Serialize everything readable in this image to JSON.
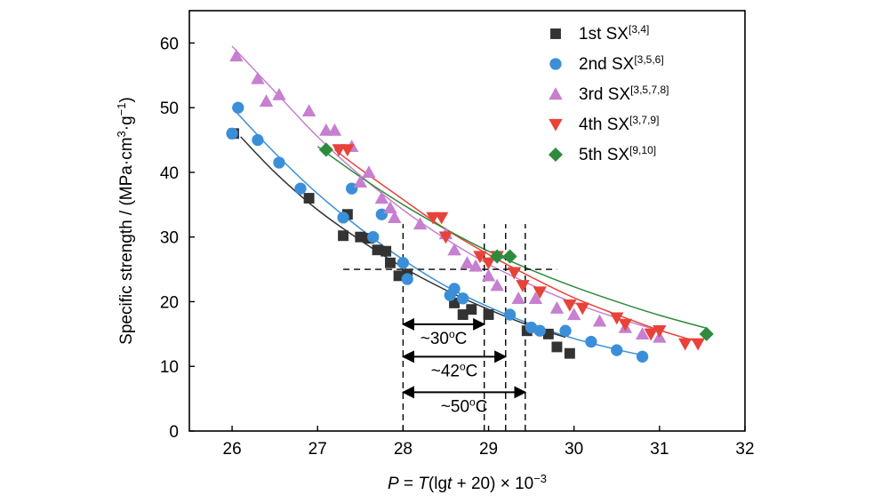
{
  "chart_data": {
    "type": "scatter",
    "title": "",
    "xlabel_parts": {
      "p": "P",
      "eq": " = ",
      "t": "T",
      "mid": "(lg",
      "t2": "t",
      "end": " + 20) × 10",
      "sup": "−3"
    },
    "ylabel": {
      "main": "Specific strength / (MPa·cm",
      "sup1": "3",
      "mid": "·g",
      "sup2": "−1",
      "end": ")"
    },
    "xlim": [
      25.5,
      32
    ],
    "ylim": [
      0,
      65
    ],
    "xticks": [
      26,
      27,
      28,
      29,
      30,
      31,
      32
    ],
    "yticks": [
      0,
      10,
      20,
      30,
      40,
      50,
      60
    ],
    "xtick_labels": [
      "26",
      "27",
      "28",
      "29",
      "30",
      "31",
      "32"
    ],
    "ytick_labels": [
      "0",
      "10",
      "20",
      "30",
      "40",
      "50",
      "60"
    ],
    "grid": false,
    "legend_position": "top-right",
    "series": [
      {
        "name": "1st SX",
        "ref": "[3,4]",
        "color": "#333333",
        "marker": "square",
        "points": [
          [
            26.02,
            46.0
          ],
          [
            26.9,
            36.0
          ],
          [
            27.3,
            30.2
          ],
          [
            27.35,
            33.5
          ],
          [
            27.5,
            30.0
          ],
          [
            27.6,
            29.8
          ],
          [
            27.7,
            28.0
          ],
          [
            27.8,
            27.8
          ],
          [
            27.85,
            26.0
          ],
          [
            27.95,
            24.0
          ],
          [
            28.05,
            24.2
          ],
          [
            28.6,
            19.8
          ],
          [
            28.7,
            18.0
          ],
          [
            28.8,
            18.8
          ],
          [
            29.0,
            18.0
          ],
          [
            29.45,
            15.5
          ],
          [
            29.7,
            15.0
          ],
          [
            29.8,
            13.0
          ],
          [
            29.95,
            12.0
          ]
        ],
        "fit": [
          [
            26.1,
            45.5
          ],
          [
            26.5,
            40.0
          ],
          [
            27.0,
            34.2
          ],
          [
            27.5,
            29.5
          ],
          [
            28.0,
            25.3
          ],
          [
            28.5,
            21.8
          ],
          [
            29.0,
            18.8
          ],
          [
            29.5,
            16.2
          ],
          [
            29.9,
            14.5
          ]
        ]
      },
      {
        "name": "2nd SX",
        "ref": "[3,5,6]",
        "color": "#3a8fd8",
        "marker": "circle",
        "points": [
          [
            26.0,
            46.0
          ],
          [
            26.07,
            50.0
          ],
          [
            26.3,
            45.0
          ],
          [
            26.55,
            41.5
          ],
          [
            26.8,
            37.5
          ],
          [
            27.3,
            33.0
          ],
          [
            27.4,
            37.5
          ],
          [
            27.65,
            30.0
          ],
          [
            27.75,
            33.5
          ],
          [
            28.0,
            26.0
          ],
          [
            28.05,
            23.5
          ],
          [
            28.55,
            21.0
          ],
          [
            28.6,
            22.0
          ],
          [
            28.7,
            20.5
          ],
          [
            29.25,
            18.0
          ],
          [
            29.5,
            16.0
          ],
          [
            29.6,
            15.5
          ],
          [
            29.9,
            15.5
          ],
          [
            30.2,
            13.8
          ],
          [
            30.5,
            12.5
          ],
          [
            30.8,
            11.5
          ]
        ],
        "fit": [
          [
            26.0,
            50.0
          ],
          [
            26.5,
            43.0
          ],
          [
            27.0,
            36.7
          ],
          [
            27.5,
            31.3
          ],
          [
            28.0,
            26.5
          ],
          [
            28.5,
            22.4
          ],
          [
            29.0,
            19.2
          ],
          [
            29.5,
            16.5
          ],
          [
            30.0,
            14.3
          ],
          [
            30.5,
            12.6
          ],
          [
            30.85,
            11.6
          ]
        ]
      },
      {
        "name": "3rd SX",
        "ref": "[3,5,7,8]",
        "color": "#c77fcf",
        "marker": "triangle-up",
        "points": [
          [
            26.05,
            58.0
          ],
          [
            26.3,
            54.5
          ],
          [
            26.4,
            51.0
          ],
          [
            26.55,
            52.0
          ],
          [
            26.9,
            49.5
          ],
          [
            27.1,
            46.5
          ],
          [
            27.2,
            46.5
          ],
          [
            27.4,
            44.0
          ],
          [
            27.5,
            38.5
          ],
          [
            27.6,
            40.0
          ],
          [
            27.75,
            36.0
          ],
          [
            27.85,
            34.5
          ],
          [
            27.9,
            33.0
          ],
          [
            28.2,
            32.0
          ],
          [
            28.5,
            30.5
          ],
          [
            28.6,
            28.0
          ],
          [
            28.75,
            26.0
          ],
          [
            28.85,
            25.5
          ],
          [
            29.0,
            24.0
          ],
          [
            29.1,
            22.5
          ],
          [
            29.35,
            20.5
          ],
          [
            29.55,
            20.5
          ],
          [
            29.8,
            19.0
          ],
          [
            30.0,
            18.0
          ],
          [
            30.3,
            17.0
          ],
          [
            30.6,
            16.0
          ],
          [
            30.8,
            15.0
          ],
          [
            31.0,
            14.5
          ]
        ],
        "fit": [
          [
            26.0,
            59.5
          ],
          [
            26.5,
            52.5
          ],
          [
            27.0,
            45.5
          ],
          [
            27.5,
            39.5
          ],
          [
            28.0,
            34.2
          ],
          [
            28.5,
            29.7
          ],
          [
            29.0,
            25.8
          ],
          [
            29.5,
            22.6
          ],
          [
            30.0,
            19.8
          ],
          [
            30.5,
            17.5
          ],
          [
            31.0,
            15.5
          ]
        ]
      },
      {
        "name": "4th SX",
        "ref": "[3,7,9]",
        "color": "#e8433a",
        "marker": "triangle-down",
        "points": [
          [
            27.25,
            43.5
          ],
          [
            27.35,
            43.5
          ],
          [
            28.35,
            33.0
          ],
          [
            28.45,
            33.0
          ],
          [
            28.5,
            30.0
          ],
          [
            28.9,
            27.0
          ],
          [
            29.0,
            26.0
          ],
          [
            29.1,
            27.0
          ],
          [
            29.3,
            24.5
          ],
          [
            29.4,
            22.5
          ],
          [
            29.6,
            21.5
          ],
          [
            29.95,
            19.5
          ],
          [
            30.1,
            19.0
          ],
          [
            30.5,
            17.5
          ],
          [
            30.6,
            16.5
          ],
          [
            30.9,
            15.0
          ],
          [
            31.0,
            15.5
          ],
          [
            31.3,
            13.5
          ],
          [
            31.45,
            13.5
          ]
        ],
        "fit": [
          [
            27.2,
            43.5
          ],
          [
            27.5,
            40.5
          ],
          [
            28.0,
            35.8
          ],
          [
            28.5,
            31.2
          ],
          [
            29.0,
            27.3
          ],
          [
            29.5,
            23.8
          ],
          [
            30.0,
            20.6
          ],
          [
            30.5,
            18.0
          ],
          [
            31.0,
            15.6
          ],
          [
            31.45,
            13.8
          ]
        ]
      },
      {
        "name": "5th SX",
        "ref": "[9,10]",
        "color": "#2e8b3e",
        "marker": "diamond",
        "points": [
          [
            27.1,
            43.5
          ],
          [
            29.1,
            27.0
          ],
          [
            29.25,
            27.0
          ],
          [
            31.55,
            15.0
          ]
        ],
        "fit": [
          [
            27.0,
            44.0
          ],
          [
            27.5,
            39.3
          ],
          [
            28.0,
            35.0
          ],
          [
            28.5,
            31.2
          ],
          [
            29.0,
            27.8
          ],
          [
            29.5,
            24.9
          ],
          [
            30.0,
            22.3
          ],
          [
            30.5,
            20.0
          ],
          [
            31.0,
            17.9
          ],
          [
            31.55,
            15.9
          ]
        ]
      }
    ],
    "reference_lines": {
      "horizontal_y": 25,
      "horizontal_x_range": [
        27.3,
        29.8
      ],
      "vertical_x": [
        28.0,
        28.95,
        29.2,
        29.43
      ],
      "vertical_y_range": [
        0,
        32
      ]
    },
    "annotations": [
      {
        "label": "~30",
        "deg": "o",
        "unit": "C",
        "x_from": 28.0,
        "x_to": 28.95,
        "y": 16.5
      },
      {
        "label": "~42",
        "deg": "o",
        "unit": "C",
        "x_from": 28.0,
        "x_to": 29.2,
        "y": 11.5
      },
      {
        "label": "~50",
        "deg": "o",
        "unit": "C",
        "x_from": 28.0,
        "x_to": 29.43,
        "y": 6.0
      }
    ]
  }
}
